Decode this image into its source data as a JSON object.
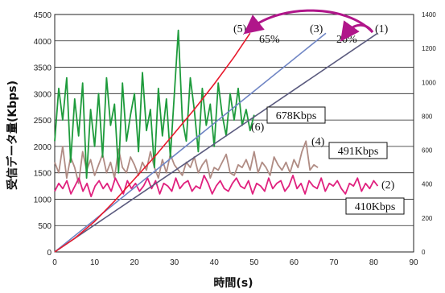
{
  "chart_data": {
    "type": "line",
    "xlabel": "時間(s)",
    "ylabel": "受信データ量(Kbps)",
    "xlim": [
      0,
      90
    ],
    "ylim_left": [
      0,
      4500
    ],
    "ylim_right": [
      0,
      1400
    ],
    "x_ticks": [
      0,
      10,
      20,
      30,
      40,
      50,
      60,
      70,
      80,
      90
    ],
    "y_left_ticks": [
      0,
      500,
      1000,
      1500,
      2000,
      2500,
      3000,
      3500,
      4000,
      4500
    ],
    "y_right_ticks": [
      0,
      200,
      400,
      600,
      800,
      1000,
      1200,
      1400
    ],
    "grid": "horizontal",
    "series": [
      {
        "name": "(1)",
        "axis": "right",
        "color": "#5a5a7e",
        "kind": "cumulative",
        "points": [
          [
            0,
            0
          ],
          [
            81,
            1290
          ]
        ]
      },
      {
        "name": "(3)",
        "axis": "right",
        "color": "#6f85c4",
        "kind": "cumulative",
        "points": [
          [
            0,
            0
          ],
          [
            68,
            1290
          ]
        ]
      },
      {
        "name": "(5)",
        "axis": "right",
        "color": "#e8192c",
        "kind": "cumulative",
        "points": [
          [
            0,
            0
          ],
          [
            5,
            80
          ],
          [
            10,
            180
          ],
          [
            15,
            300
          ],
          [
            20,
            430
          ],
          [
            25,
            560
          ],
          [
            30,
            700
          ],
          [
            35,
            840
          ],
          [
            40,
            990
          ],
          [
            45,
            1150
          ],
          [
            49,
            1290
          ]
        ]
      },
      {
        "name": "(2)",
        "axis": "left",
        "color": "#e0207e",
        "kind": "rate",
        "x_start": 0,
        "x_end": 81,
        "values": [
          1150,
          1300,
          1200,
          1350,
          1100,
          1250,
          1400,
          1150,
          1300,
          1050,
          1250,
          1350,
          1200,
          1300,
          1150,
          1400,
          1250,
          1100,
          1350,
          1200,
          1300,
          1150,
          1250,
          1400,
          1200,
          1350,
          1100,
          1300,
          1250,
          1150,
          1400,
          1200,
          1300,
          1350,
          1150,
          1250,
          1200,
          1450,
          1300,
          1100,
          1250,
          1350,
          1200,
          1150,
          1300,
          1400,
          1250,
          1200,
          1350,
          1100,
          1300,
          1250,
          1150,
          1400,
          1200,
          1300,
          1350,
          1150,
          1250,
          1450,
          1200,
          1300,
          1100,
          1350,
          1250,
          1200,
          1400,
          1150,
          1300,
          1250,
          1350,
          1200,
          1100,
          1300,
          1250,
          1400,
          1150,
          1300,
          1200,
          1350,
          1250
        ]
      },
      {
        "name": "(4)",
        "axis": "left",
        "color": "#b08c84",
        "kind": "rate",
        "x_start": 0,
        "x_end": 66,
        "values": [
          1700,
          1500,
          2000,
          1400,
          1800,
          1600,
          1300,
          1900,
          1550,
          1750,
          1450,
          1650,
          1850,
          1500,
          1700,
          1400,
          1950,
          1600,
          1500,
          1800,
          1650,
          1450,
          1700,
          1550,
          1900,
          1600,
          1400,
          1750,
          1500,
          1850,
          1650,
          1550,
          1450,
          1700,
          1600,
          1800,
          1500,
          1650,
          1750,
          1400,
          1600,
          1550,
          1700,
          1850,
          1500,
          1450,
          1650,
          1600,
          1750,
          1550,
          1900,
          1500,
          1700,
          1600,
          1450,
          1800,
          1650,
          1550,
          1700,
          1500,
          1750,
          1600,
          1900,
          2100,
          1550,
          1650,
          1600
        ]
      },
      {
        "name": "(6)",
        "axis": "left",
        "color": "#1e9b3c",
        "kind": "rate",
        "x_start": 0,
        "x_end": 50,
        "values": [
          2100,
          3100,
          2500,
          3300,
          1700,
          2900,
          2200,
          3200,
          1400,
          2700,
          2000,
          3000,
          1800,
          3300,
          2400,
          2800,
          1500,
          3200,
          2100,
          2600,
          3000,
          1900,
          3400,
          2300,
          2700,
          1600,
          3100,
          2200,
          2900,
          1800,
          3000,
          4200,
          2500,
          2100,
          3300,
          2700,
          1900,
          3100,
          2400,
          2800,
          2000,
          3200,
          2600,
          2200,
          3000,
          2500,
          3100,
          2400,
          2700,
          2300,
          2600
        ]
      }
    ],
    "annotations": {
      "percent_a": "65%",
      "percent_b": "20%",
      "rate_678": "678Kbps",
      "rate_491": "491Kbps",
      "rate_410": "410Kbps"
    }
  }
}
